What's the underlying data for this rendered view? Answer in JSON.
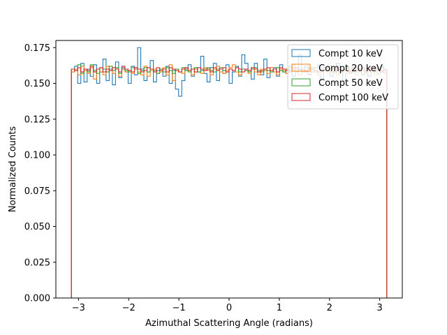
{
  "chart_data": {
    "type": "line",
    "style": "step-histogram",
    "xlabel": "Azimuthal Scattering Angle (radians)",
    "ylabel": "Normalized Counts",
    "xlim": [
      -3.45,
      3.45
    ],
    "ylim": [
      0,
      0.18
    ],
    "x_ticks": [
      -3,
      -2,
      -1,
      0,
      1,
      2,
      3
    ],
    "x_tick_labels": [
      "−3",
      "−2",
      "−1",
      "0",
      "1",
      "2",
      "3"
    ],
    "y_ticks": [
      0,
      0.025,
      0.05,
      0.075,
      0.1,
      0.125,
      0.15,
      0.175
    ],
    "y_tick_labels": [
      "0.000",
      "0.025",
      "0.050",
      "0.075",
      "0.100",
      "0.125",
      "0.150",
      "0.175"
    ],
    "grid": false,
    "legend_position": "top-right",
    "bin_range": [
      -3.14159,
      3.14159
    ],
    "bins": 100,
    "series": [
      {
        "name": "Compt 10 keV",
        "color": "#1f77b4",
        "values": [
          0.158,
          0.162,
          0.15,
          0.164,
          0.151,
          0.16,
          0.155,
          0.163,
          0.15,
          0.158,
          0.167,
          0.152,
          0.16,
          0.149,
          0.165,
          0.154,
          0.161,
          0.158,
          0.15,
          0.162,
          0.156,
          0.175,
          0.16,
          0.152,
          0.158,
          0.166,
          0.151,
          0.159,
          0.16,
          0.155,
          0.162,
          0.15,
          0.159,
          0.146,
          0.141,
          0.152,
          0.16,
          0.163,
          0.155,
          0.161,
          0.158,
          0.169,
          0.157,
          0.151,
          0.161,
          0.164,
          0.152,
          0.16,
          0.157,
          0.163,
          0.15,
          0.158,
          0.162,
          0.155,
          0.17,
          0.164,
          0.159,
          0.153,
          0.164,
          0.158,
          0.156,
          0.167,
          0.154,
          0.158,
          0.161,
          0.155,
          0.163,
          0.158,
          0.157,
          0.162,
          0.155,
          0.16,
          0.17,
          0.158,
          0.162,
          0.156,
          0.158,
          0.161,
          0.163,
          0.152,
          0.159,
          0.162,
          0.155,
          0.158,
          0.164,
          0.158,
          0.152,
          0.16,
          0.157,
          0.162,
          0.158,
          0.16,
          0.156,
          0.159,
          0.155,
          0.158,
          0.16,
          0.157,
          0.162,
          0.159
        ]
      },
      {
        "name": "Compt 20 keV",
        "color": "#ff7f0e",
        "values": [
          0.158,
          0.16,
          0.156,
          0.162,
          0.159,
          0.157,
          0.161,
          0.153,
          0.16,
          0.158,
          0.156,
          0.162,
          0.159,
          0.157,
          0.161,
          0.155,
          0.16,
          0.158,
          0.159,
          0.157,
          0.161,
          0.158,
          0.156,
          0.162,
          0.155,
          0.159,
          0.16,
          0.157,
          0.158,
          0.161,
          0.156,
          0.163,
          0.152,
          0.16,
          0.158,
          0.157,
          0.161,
          0.159,
          0.156,
          0.16,
          0.158,
          0.157,
          0.161,
          0.159,
          0.156,
          0.16,
          0.162,
          0.158,
          0.157,
          0.159,
          0.161,
          0.163,
          0.158,
          0.156,
          0.16,
          0.159,
          0.157,
          0.161,
          0.158,
          0.156,
          0.16,
          0.159,
          0.157,
          0.161,
          0.158,
          0.156,
          0.16,
          0.159,
          0.157,
          0.161,
          0.163,
          0.158,
          0.156,
          0.16,
          0.159,
          0.157,
          0.161,
          0.158,
          0.156,
          0.16,
          0.159,
          0.157,
          0.161,
          0.158,
          0.156,
          0.16,
          0.159,
          0.157,
          0.161,
          0.158,
          0.156,
          0.16,
          0.159,
          0.157,
          0.161,
          0.158,
          0.156,
          0.16,
          0.159,
          0.157
        ]
      },
      {
        "name": "Compt 50 keV",
        "color": "#2ca02c",
        "values": [
          0.16,
          0.159,
          0.163,
          0.157,
          0.16,
          0.158,
          0.163,
          0.159,
          0.157,
          0.161,
          0.16,
          0.158,
          0.162,
          0.159,
          0.161,
          0.157,
          0.16,
          0.159,
          0.158,
          0.161,
          0.16,
          0.157,
          0.159,
          0.161,
          0.158,
          0.16,
          0.159,
          0.157,
          0.16,
          0.158,
          0.161,
          0.159,
          0.157,
          0.16,
          0.158,
          0.161,
          0.159,
          0.158,
          0.16,
          0.161,
          0.158,
          0.159,
          0.16,
          0.161,
          0.159,
          0.158,
          0.16,
          0.161,
          0.159,
          0.158,
          0.16,
          0.159,
          0.161,
          0.158,
          0.16,
          0.159,
          0.158,
          0.16,
          0.161,
          0.159,
          0.158,
          0.16,
          0.159,
          0.158,
          0.16,
          0.161,
          0.159,
          0.158,
          0.16,
          0.159,
          0.161,
          0.158,
          0.16,
          0.159,
          0.158,
          0.16,
          0.161,
          0.159,
          0.158,
          0.16,
          0.159,
          0.161,
          0.158,
          0.16,
          0.159,
          0.158,
          0.16,
          0.161,
          0.159,
          0.158,
          0.16,
          0.159,
          0.161,
          0.158,
          0.16,
          0.159,
          0.158,
          0.16,
          0.161,
          0.159
        ]
      },
      {
        "name": "Compt 100 keV",
        "color": "#d62728",
        "values": [
          0.16,
          0.159,
          0.161,
          0.158,
          0.16,
          0.159,
          0.162,
          0.158,
          0.16,
          0.161,
          0.158,
          0.16,
          0.159,
          0.161,
          0.16,
          0.158,
          0.162,
          0.16,
          0.159,
          0.158,
          0.161,
          0.16,
          0.158,
          0.159,
          0.161,
          0.16,
          0.158,
          0.161,
          0.159,
          0.16,
          0.158,
          0.161,
          0.16,
          0.159,
          0.158,
          0.16,
          0.161,
          0.159,
          0.16,
          0.158,
          0.161,
          0.16,
          0.159,
          0.16,
          0.158,
          0.161,
          0.159,
          0.16,
          0.161,
          0.158,
          0.16,
          0.159,
          0.161,
          0.16,
          0.158,
          0.16,
          0.159,
          0.161,
          0.16,
          0.158,
          0.159,
          0.16,
          0.161,
          0.159,
          0.16,
          0.158,
          0.161,
          0.16,
          0.159,
          0.158,
          0.16,
          0.161,
          0.159,
          0.16,
          0.158,
          0.161,
          0.16,
          0.159,
          0.158,
          0.16,
          0.161,
          0.159,
          0.16,
          0.158,
          0.161,
          0.16,
          0.159,
          0.16,
          0.158,
          0.161,
          0.159,
          0.16,
          0.161,
          0.158,
          0.16,
          0.159,
          0.161,
          0.16,
          0.158,
          0.16
        ]
      }
    ]
  }
}
